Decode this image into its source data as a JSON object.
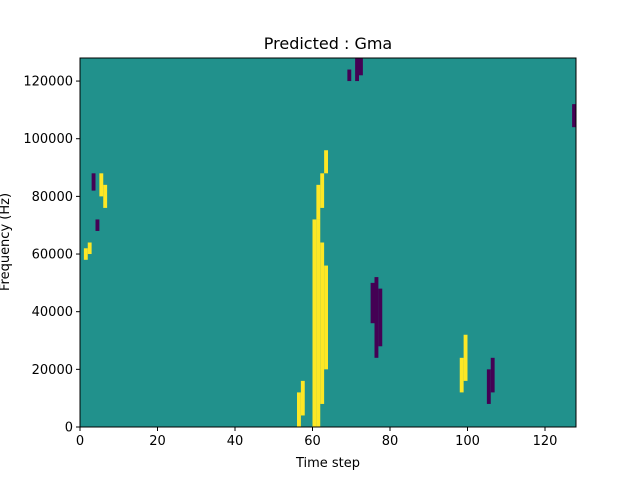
{
  "chart_data": {
    "type": "heatmap",
    "title": "Predicted : Gma",
    "xlabel": "Time step",
    "ylabel": "Frequency (Hz)",
    "xlim": [
      0,
      128
    ],
    "ylim": [
      0,
      128000
    ],
    "x_ticks": [
      0,
      20,
      40,
      60,
      80,
      100,
      120
    ],
    "y_ticks": [
      0,
      20000,
      40000,
      60000,
      80000,
      100000,
      120000
    ],
    "x_tick_labels": [
      "0",
      "20",
      "40",
      "60",
      "80",
      "100",
      "120"
    ],
    "y_tick_labels": [
      "0",
      "20000",
      "40000",
      "60000",
      "80000",
      "100000",
      "120000"
    ],
    "n_time_steps": 128,
    "n_freq_bins": 64,
    "freq_bin_width": 2000,
    "colormap": "viridis",
    "color_levels": {
      "low": "#440154",
      "mid": "#21918c",
      "high": "#fde725"
    },
    "background_level": "mid",
    "cells": [
      {
        "t": 60,
        "f0": 0,
        "f1": 36,
        "level": "high"
      },
      {
        "t": 61,
        "f0": 0,
        "f1": 36,
        "level": "high"
      },
      {
        "t": 62,
        "f0": 4,
        "f1": 32,
        "level": "high"
      },
      {
        "t": 63,
        "f0": 10,
        "f1": 28,
        "level": "high"
      },
      {
        "t": 61,
        "f0": 36,
        "f1": 42,
        "level": "high"
      },
      {
        "t": 62,
        "f0": 38,
        "f1": 44,
        "level": "high"
      },
      {
        "t": 63,
        "f0": 44,
        "f1": 48,
        "level": "high"
      },
      {
        "t": 75,
        "f0": 18,
        "f1": 25,
        "level": "low"
      },
      {
        "t": 76,
        "f0": 12,
        "f1": 26,
        "level": "low"
      },
      {
        "t": 77,
        "f0": 14,
        "f1": 24,
        "level": "low"
      },
      {
        "t": 71,
        "f0": 60,
        "f1": 64,
        "level": "low"
      },
      {
        "t": 72,
        "f0": 61,
        "f1": 64,
        "level": "low"
      },
      {
        "t": 69,
        "f0": 60,
        "f1": 62,
        "level": "low"
      },
      {
        "t": 56,
        "f0": 0,
        "f1": 6,
        "level": "high"
      },
      {
        "t": 57,
        "f0": 2,
        "f1": 8,
        "level": "high"
      },
      {
        "t": 98,
        "f0": 6,
        "f1": 12,
        "level": "high"
      },
      {
        "t": 99,
        "f0": 8,
        "f1": 16,
        "level": "high"
      },
      {
        "t": 105,
        "f0": 4,
        "f1": 10,
        "level": "low"
      },
      {
        "t": 106,
        "f0": 6,
        "f1": 12,
        "level": "low"
      },
      {
        "t": 127,
        "f0": 52,
        "f1": 56,
        "level": "low"
      },
      {
        "t": 1,
        "f0": 29,
        "f1": 31,
        "level": "high"
      },
      {
        "t": 2,
        "f0": 30,
        "f1": 32,
        "level": "high"
      },
      {
        "t": 3,
        "f0": 41,
        "f1": 44,
        "level": "low"
      },
      {
        "t": 4,
        "f0": 34,
        "f1": 36,
        "level": "low"
      },
      {
        "t": 5,
        "f0": 40,
        "f1": 44,
        "level": "high"
      },
      {
        "t": 6,
        "f0": 38,
        "f1": 42,
        "level": "high"
      }
    ]
  }
}
